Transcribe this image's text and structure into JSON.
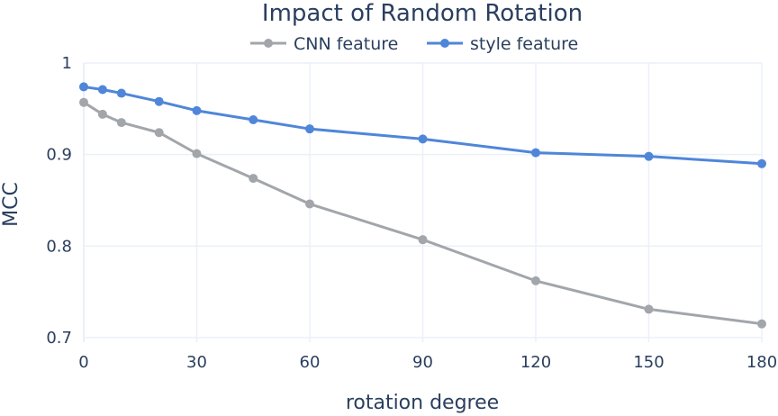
{
  "chart_data": {
    "type": "line",
    "title": "Impact of Random Rotation",
    "xlabel": "rotation degree",
    "ylabel": "MCC",
    "xlim": [
      0,
      180
    ],
    "ylim": [
      0.695,
      1.0
    ],
    "xticks": [
      0,
      30,
      60,
      90,
      120,
      150,
      180
    ],
    "yticks": [
      0.7,
      0.8,
      0.9,
      1.0
    ],
    "ytick_labels": [
      "0.7",
      "0.8",
      "0.9",
      "1"
    ],
    "legend_position": "top-center",
    "x": [
      0,
      5,
      10,
      20,
      30,
      45,
      60,
      90,
      120,
      150,
      180
    ],
    "series": [
      {
        "name": "CNN feature",
        "color": "#a2a6aa",
        "values": [
          0.957,
          0.944,
          0.935,
          0.924,
          0.901,
          0.874,
          0.846,
          0.807,
          0.762,
          0.731,
          0.715
        ]
      },
      {
        "name": "style feature",
        "color": "#4f86d9",
        "values": [
          0.974,
          0.971,
          0.967,
          0.958,
          0.948,
          0.938,
          0.928,
          0.917,
          0.902,
          0.898,
          0.89
        ]
      }
    ]
  }
}
